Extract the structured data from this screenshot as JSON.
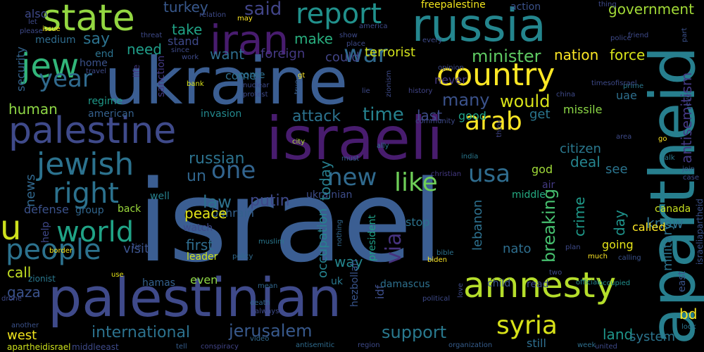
{
  "words": [
    {
      "text": "israel",
      "color": "#3b5e92",
      "vertical": false
    },
    {
      "text": "ukraine",
      "color": "#3b5e92",
      "vertical": false
    },
    {
      "text": "palestinian",
      "color": "#3f4a8a",
      "vertical": false
    },
    {
      "text": "israeli",
      "color": "#481c6e",
      "vertical": false
    },
    {
      "text": "palestine",
      "color": "#3f4a8a",
      "vertical": false
    },
    {
      "text": "apartheid",
      "color": "#277f8e",
      "vertical": true
    },
    {
      "text": "russia",
      "color": "#24868e",
      "vertical": false
    },
    {
      "text": "state",
      "color": "#93d741",
      "vertical": false
    },
    {
      "text": "iran",
      "color": "#481c6e",
      "vertical": false
    },
    {
      "text": "jew",
      "color": "#32b67a",
      "vertical": false
    },
    {
      "text": "report",
      "color": "#21918c",
      "vertical": false
    },
    {
      "text": "country",
      "color": "#fde725",
      "vertical": false
    },
    {
      "text": "jewish",
      "color": "#2c728e",
      "vertical": false
    },
    {
      "text": "amnesty",
      "color": "#b5de2b",
      "vertical": false
    },
    {
      "text": "world",
      "color": "#20a386",
      "vertical": false
    },
    {
      "text": "people",
      "color": "#2c728e",
      "vertical": false
    },
    {
      "text": "right",
      "color": "#2c728e",
      "vertical": false
    },
    {
      "text": "arab",
      "color": "#fde725",
      "vertical": false
    },
    {
      "text": "syria",
      "color": "#d8e219",
      "vertical": false
    },
    {
      "text": "war",
      "color": "#306a8e",
      "vertical": false
    },
    {
      "text": "year",
      "color": "#306a8e",
      "vertical": false
    },
    {
      "text": "u",
      "color": "#cde11d",
      "vertical": false
    },
    {
      "text": "one",
      "color": "#32648e",
      "vertical": false
    },
    {
      "text": "new",
      "color": "#306a8e",
      "vertical": false
    },
    {
      "text": "like",
      "color": "#6ece58",
      "vertical": false
    },
    {
      "text": "usa",
      "color": "#2f6c8e",
      "vertical": false
    },
    {
      "text": "via",
      "color": "#46327e",
      "vertical": true
    },
    {
      "text": "minister",
      "color": "#5ec962",
      "vertical": false
    },
    {
      "text": "terrorist",
      "color": "#d2e21b",
      "vertical": false
    },
    {
      "text": "nation",
      "color": "#fde725",
      "vertical": false
    },
    {
      "text": "force",
      "color": "#d5e21a",
      "vertical": false
    },
    {
      "text": "would",
      "color": "#d8e219",
      "vertical": false
    },
    {
      "text": "time",
      "color": "#26828e",
      "vertical": false
    },
    {
      "text": "attack",
      "color": "#2c728e",
      "vertical": false
    },
    {
      "text": "many",
      "color": "#3b528b",
      "vertical": false
    },
    {
      "text": "say",
      "color": "#2c728e",
      "vertical": false
    },
    {
      "text": "said",
      "color": "#414487",
      "vertical": false
    },
    {
      "text": "turkey",
      "color": "#38588c",
      "vertical": false
    },
    {
      "text": "take",
      "color": "#20a386",
      "vertical": false
    },
    {
      "text": "make",
      "color": "#29af7f",
      "vertical": false
    },
    {
      "text": "want",
      "color": "#2e6e8e",
      "vertical": false
    },
    {
      "text": "foreign",
      "color": "#443983",
      "vertical": false
    },
    {
      "text": "could",
      "color": "#414487",
      "vertical": false
    },
    {
      "text": "need",
      "color": "#1f9e89",
      "vertical": false
    },
    {
      "text": "stand",
      "color": "#3e4989",
      "vertical": false
    },
    {
      "text": "government",
      "color": "#a2da37",
      "vertical": false
    },
    {
      "text": "freepalestine",
      "color": "#f1e51d",
      "vertical": false
    },
    {
      "text": "action",
      "color": "#3b528b",
      "vertical": false
    },
    {
      "text": "antisemitism",
      "color": "#443983",
      "vertical": true
    },
    {
      "text": "security",
      "color": "#33638d",
      "vertical": true
    },
    {
      "text": "also",
      "color": "#3e4989",
      "vertical": false
    },
    {
      "text": "medium",
      "color": "#2f6c8e",
      "vertical": false
    },
    {
      "text": "end",
      "color": "#2c728e",
      "vertical": false
    },
    {
      "text": "home",
      "color": "#3b528b",
      "vertical": false
    },
    {
      "text": "human",
      "color": "#8ed645",
      "vertical": false
    },
    {
      "text": "regime",
      "color": "#1f9a8a",
      "vertical": false
    },
    {
      "text": "american",
      "color": "#35608d",
      "vertical": false
    },
    {
      "text": "invasion",
      "color": "#23898e",
      "vertical": false
    },
    {
      "text": "come",
      "color": "#2e6f8e",
      "vertical": false
    },
    {
      "text": "last",
      "color": "#3e4c8a",
      "vertical": false
    },
    {
      "text": "good",
      "color": "#1fa187",
      "vertical": false
    },
    {
      "text": "get",
      "color": "#2a768e",
      "vertical": false
    },
    {
      "text": "missile",
      "color": "#8bd646",
      "vertical": false
    },
    {
      "text": "uae",
      "color": "#2e6f8e",
      "vertical": false
    },
    {
      "text": "never",
      "color": "#453882",
      "vertical": false
    },
    {
      "text": "russian",
      "color": "#2c728e",
      "vertical": false
    },
    {
      "text": "un",
      "color": "#31668e",
      "vertical": false
    },
    {
      "text": "citizen",
      "color": "#2a788e",
      "vertical": false
    },
    {
      "text": "deal",
      "color": "#25848e",
      "vertical": false
    },
    {
      "text": "see",
      "color": "#2b748e",
      "vertical": false
    },
    {
      "text": "god",
      "color": "#a0da39",
      "vertical": false
    },
    {
      "text": "canada",
      "color": "#c8e020",
      "vertical": false
    },
    {
      "text": "know",
      "color": "#2d708e",
      "vertical": false
    },
    {
      "text": "news",
      "color": "#31688e",
      "vertical": true
    },
    {
      "text": "putin",
      "color": "#3e4989",
      "vertical": false
    },
    {
      "text": "law",
      "color": "#2d718e",
      "vertical": false
    },
    {
      "text": "bahrain",
      "color": "#34618d",
      "vertical": false
    },
    {
      "text": "ukrainian",
      "color": "#3d4d8a",
      "vertical": false
    },
    {
      "text": "middle",
      "color": "#25ab82",
      "vertical": false
    },
    {
      "text": "air",
      "color": "#443a83",
      "vertical": false
    },
    {
      "text": "well",
      "color": "#26818e",
      "vertical": false
    },
    {
      "text": "defense",
      "color": "#3b528b",
      "vertical": false
    },
    {
      "text": "group",
      "color": "#31668e",
      "vertical": false
    },
    {
      "text": "back",
      "color": "#9bd93c",
      "vertical": false
    },
    {
      "text": "peace",
      "color": "#e2e418",
      "vertical": false
    },
    {
      "text": "today",
      "color": "#277f8e",
      "vertical": true
    },
    {
      "text": "occupation",
      "color": "#26828e",
      "vertical": true
    },
    {
      "text": "lebanon",
      "color": "#2d708e",
      "vertical": true
    },
    {
      "text": "breaking",
      "color": "#46c06f",
      "vertical": true
    },
    {
      "text": "crime",
      "color": "#1f9a8a",
      "vertical": true
    },
    {
      "text": "day",
      "color": "#1f948c",
      "vertical": true
    },
    {
      "text": "military",
      "color": "#2c738e",
      "vertical": true
    },
    {
      "text": "help",
      "color": "#3f4889",
      "vertical": true
    },
    {
      "text": "visit",
      "color": "#3b528b",
      "vertical": false
    },
    {
      "text": "watch",
      "color": "#3e4a89",
      "vertical": false
    },
    {
      "text": "first",
      "color": "#2f6c8e",
      "vertical": false
    },
    {
      "text": "stop",
      "color": "#2c738e",
      "vertical": false
    },
    {
      "text": "nato",
      "color": "#2e6e8e",
      "vertical": false
    },
    {
      "text": "called",
      "color": "#fde725",
      "vertical": false
    },
    {
      "text": "going",
      "color": "#e5e419",
      "vertical": false
    },
    {
      "text": "leader",
      "color": "#cde11d",
      "vertical": false
    },
    {
      "text": "way",
      "color": "#24868e",
      "vertical": false
    },
    {
      "text": "president",
      "color": "#1fa088",
      "vertical": true
    },
    {
      "text": "hezbollah",
      "color": "#39558c",
      "vertical": true
    },
    {
      "text": "idf",
      "color": "#3d4e8a",
      "vertical": true
    },
    {
      "text": "uk",
      "color": "#2a788e",
      "vertical": false
    },
    {
      "text": "call",
      "color": "#c2df23",
      "vertical": false
    },
    {
      "text": "hamas",
      "color": "#34618d",
      "vertical": false
    },
    {
      "text": "even",
      "color": "#8ed645",
      "vertical": false
    },
    {
      "text": "damascus",
      "color": "#2d708e",
      "vertical": false
    },
    {
      "text": "child",
      "color": "#39558c",
      "vertical": false
    },
    {
      "text": "read",
      "color": "#3e4989",
      "vertical": false
    },
    {
      "text": "gaza",
      "color": "#3b528b",
      "vertical": false
    },
    {
      "text": "zionist",
      "color": "#2a788e",
      "vertical": false
    },
    {
      "text": "international",
      "color": "#2c728e",
      "vertical": false
    },
    {
      "text": "jerusalem",
      "color": "#38598c",
      "vertical": false
    },
    {
      "text": "support",
      "color": "#29798e",
      "vertical": false
    },
    {
      "text": "land",
      "color": "#1f968b",
      "vertical": false
    },
    {
      "text": "bd",
      "color": "#f8e621",
      "vertical": false
    },
    {
      "text": "west",
      "color": "#f1e51d",
      "vertical": false
    },
    {
      "text": "still",
      "color": "#2e6e8e",
      "vertical": false
    },
    {
      "text": "system",
      "color": "#2b748e",
      "vertical": false
    },
    {
      "text": "east",
      "color": "#3a548c",
      "vertical": true
    },
    {
      "text": "israeliapartheid",
      "color": "#3b528b",
      "vertical": true
    },
    {
      "text": "come",
      "color": "#2e6f8e",
      "vertical": false
    },
    {
      "text": "official",
      "color": "#23898e",
      "vertical": false
    },
    {
      "text": "occupied",
      "color": "#21908d",
      "vertical": false
    },
    {
      "text": "apartheidisrael",
      "color": "#cde11d",
      "vertical": false
    },
    {
      "text": "middleeast",
      "color": "#3e4a89",
      "vertical": false
    },
    {
      "text": "tell",
      "color": "#365d8d",
      "vertical": false
    },
    {
      "text": "conspiracy",
      "color": "#414487",
      "vertical": false
    },
    {
      "text": "antisemitic",
      "color": "#2f6b8e",
      "vertical": false
    },
    {
      "text": "region",
      "color": "#3e4a89",
      "vertical": false
    },
    {
      "text": "organization",
      "color": "#365d8d",
      "vertical": false
    },
    {
      "text": "week",
      "color": "#2e6f8e",
      "vertical": false
    },
    {
      "text": "united",
      "color": "#3e4a89",
      "vertical": false
    },
    {
      "text": "look",
      "color": "#2b748e",
      "vertical": false
    },
    {
      "text": "another",
      "color": "#3b528b",
      "vertical": false
    },
    {
      "text": "drone",
      "color": "#3e4989",
      "vertical": false
    },
    {
      "text": "video",
      "color": "#31688e",
      "vertical": false
    },
    {
      "text": "border",
      "color": "#f6e620",
      "vertical": false
    },
    {
      "text": "tie",
      "color": "#3b528b",
      "vertical": false
    },
    {
      "text": "use",
      "color": "#e5e419",
      "vertical": false
    },
    {
      "text": "death",
      "color": "#31688e",
      "vertical": false
    },
    {
      "text": "always",
      "color": "#3e4a89",
      "vertical": false
    },
    {
      "text": "mean",
      "color": "#31688e",
      "vertical": false
    },
    {
      "text": "policy",
      "color": "#306a8e",
      "vertical": false
    },
    {
      "text": "muslim",
      "color": "#2a788e",
      "vertical": false
    },
    {
      "text": "bible",
      "color": "#2c728e",
      "vertical": false
    },
    {
      "text": "biden",
      "color": "#fde725",
      "vertical": false
    },
    {
      "text": "plan",
      "color": "#3e4a89",
      "vertical": false
    },
    {
      "text": "much",
      "color": "#fde725",
      "vertical": false
    },
    {
      "text": "calling",
      "color": "#3b528b",
      "vertical": false
    },
    {
      "text": "two",
      "color": "#3e4a89",
      "vertical": false
    },
    {
      "text": "nothing",
      "color": "#31688e",
      "vertical": true
    },
    {
      "text": "love",
      "color": "#3e4a89",
      "vertical": true
    },
    {
      "text": "political",
      "color": "#3e4a89",
      "vertical": false
    },
    {
      "text": "christian",
      "color": "#443983",
      "vertical": false
    },
    {
      "text": "india",
      "color": "#2a788e",
      "vertical": false
    },
    {
      "text": "ally",
      "color": "#2c728e",
      "vertical": false
    },
    {
      "text": "city",
      "color": "#aadc32",
      "vertical": false
    },
    {
      "text": "must",
      "color": "#365d8d",
      "vertical": false
    },
    {
      "text": "community",
      "color": "#3e4a89",
      "vertical": false
    },
    {
      "text": "think",
      "color": "#414487",
      "vertical": true
    },
    {
      "text": "area",
      "color": "#3e4a89",
      "vertical": false
    },
    {
      "text": "go",
      "color": "#fde725",
      "vertical": false
    },
    {
      "text": "talk",
      "color": "#2a788e",
      "vertical": false
    },
    {
      "text": "join",
      "color": "#365d8d",
      "vertical": false
    },
    {
      "text": "case",
      "color": "#3e4a89",
      "vertical": false
    },
    {
      "text": "part",
      "color": "#3b528b",
      "vertical": true
    },
    {
      "text": "ever",
      "color": "#3e4a89",
      "vertical": true
    },
    {
      "text": "friend",
      "color": "#3e4a89",
      "vertical": false
    },
    {
      "text": "police",
      "color": "#3e4a89",
      "vertical": false
    },
    {
      "text": "thing",
      "color": "#3e4a89",
      "vertical": false
    },
    {
      "text": "prime",
      "color": "#2a788e",
      "vertical": false
    },
    {
      "text": "china",
      "color": "#3e4a89",
      "vertical": false
    },
    {
      "text": "timesofisrael",
      "color": "#3e4a89",
      "vertical": false
    },
    {
      "text": "opinion",
      "color": "#3e4a89",
      "vertical": false
    },
    {
      "text": "history",
      "color": "#414487",
      "vertical": false
    },
    {
      "text": "zionism",
      "color": "#3e4a89",
      "vertical": true
    },
    {
      "text": "lie",
      "color": "#3e4a89",
      "vertical": false
    },
    {
      "text": "true",
      "color": "#365d8d",
      "vertical": true
    },
    {
      "text": "gt",
      "color": "#fde725",
      "vertical": false
    },
    {
      "text": "protest",
      "color": "#3e4a89",
      "vertical": false
    },
    {
      "text": "nuclear",
      "color": "#3e4a89",
      "vertical": false
    },
    {
      "text": "bank",
      "color": "#d8e219",
      "vertical": false
    },
    {
      "text": "work",
      "color": "#3e4a89",
      "vertical": false
    },
    {
      "text": "since",
      "color": "#3e4a89",
      "vertical": false
    },
    {
      "text": "threat",
      "color": "#3e4a89",
      "vertical": false
    },
    {
      "text": "sanction",
      "color": "#443983",
      "vertical": true
    },
    {
      "text": "life",
      "color": "#443983",
      "vertical": true
    },
    {
      "text": "travel",
      "color": "#3e4a89",
      "vertical": false
    },
    {
      "text": "issue",
      "color": "#fde725",
      "vertical": false
    },
    {
      "text": "please",
      "color": "#3e4a89",
      "vertical": false
    },
    {
      "text": "let",
      "color": "#3e4a89",
      "vertical": false
    },
    {
      "text": "relation",
      "color": "#3e4a89",
      "vertical": false
    },
    {
      "text": "may",
      "color": "#fde725",
      "vertical": false
    },
    {
      "text": "america",
      "color": "#3e4a89",
      "vertical": false
    },
    {
      "text": "show",
      "color": "#3e4a89",
      "vertical": false
    },
    {
      "text": "place",
      "color": "#3e4a89",
      "vertical": false
    },
    {
      "text": "every",
      "color": "#3e4a89",
      "vertical": false
    }
  ]
}
